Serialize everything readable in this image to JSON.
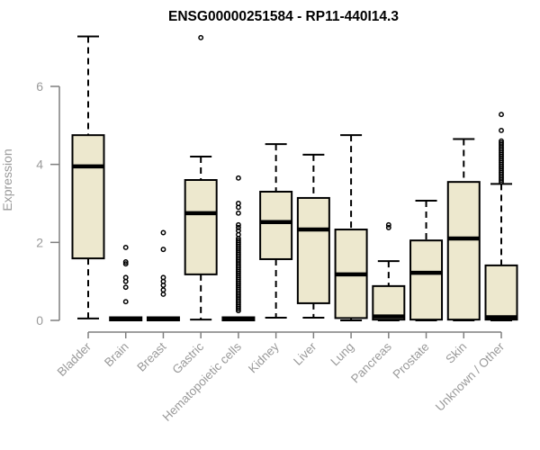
{
  "chart_data": {
    "type": "boxplot",
    "title": "ENSG00000251584 - RP11-440I14.3",
    "ylabel": "Expression",
    "xlabel": "",
    "ylim": [
      0,
      7.3
    ],
    "yticks": [
      0,
      2,
      4,
      6
    ],
    "grid": false,
    "legend": "none",
    "box_fill_color": "#ede8ce",
    "box_border_color": "#000000",
    "median_color": "#000000",
    "axis_line_color": "#7f7f7f",
    "axis_text_color": "#9a9a9a",
    "title_color": "#000000",
    "categories": [
      "Bladder",
      "Brain",
      "Breast",
      "Gastric",
      "Hematopoietic cells",
      "Kidney",
      "Liver",
      "Lung",
      "Pancreas",
      "Prostate",
      "Skin",
      "Unknown / Other"
    ],
    "boxes": [
      {
        "name": "Bladder",
        "whisker_low": 0.05,
        "q1": 1.59,
        "median": 3.95,
        "q3": 4.75,
        "whisker_high": 7.28,
        "outliers": []
      },
      {
        "name": "Brain",
        "whisker_low": 0,
        "q1": 0,
        "median": 0.03,
        "q3": 0.08,
        "whisker_high": 0.08,
        "outliers": [
          1.87,
          1.5,
          1.45,
          1.1,
          1.0,
          0.85,
          0.48
        ]
      },
      {
        "name": "Breast",
        "whisker_low": 0,
        "q1": 0,
        "median": 0.03,
        "q3": 0.08,
        "whisker_high": 0.08,
        "outliers": [
          2.25,
          1.82,
          1.1,
          1.0,
          0.9,
          0.78,
          0.67
        ]
      },
      {
        "name": "Gastric",
        "whisker_low": 0.02,
        "q1": 1.18,
        "median": 2.75,
        "q3": 3.6,
        "whisker_high": 4.2,
        "outliers": [
          7.25
        ]
      },
      {
        "name": "Hematopoietic cells",
        "whisker_low": 0,
        "q1": 0,
        "median": 0.03,
        "q3": 0.08,
        "whisker_high": 0.08,
        "outliers": [
          3.65,
          3.0,
          2.9,
          2.75,
          2.45,
          2.38,
          2.3,
          2.2,
          2.1,
          2.05,
          2.0,
          1.95,
          1.9,
          1.85,
          1.8,
          1.75,
          1.7,
          1.65,
          1.6,
          1.55,
          1.5,
          1.45,
          1.4,
          1.35,
          1.3,
          1.25,
          1.2,
          1.15,
          1.1,
          1.05,
          1.0,
          0.95,
          0.9,
          0.85,
          0.8,
          0.75,
          0.7,
          0.65,
          0.6,
          0.55,
          0.5,
          0.45,
          0.4,
          0.35,
          0.3,
          0.25
        ]
      },
      {
        "name": "Kidney",
        "whisker_low": 0.07,
        "q1": 1.57,
        "median": 2.52,
        "q3": 3.3,
        "whisker_high": 4.52,
        "outliers": []
      },
      {
        "name": "Liver",
        "whisker_low": 0.07,
        "q1": 0.44,
        "median": 2.33,
        "q3": 3.14,
        "whisker_high": 4.25,
        "outliers": []
      },
      {
        "name": "Lung",
        "whisker_low": 0,
        "q1": 0.06,
        "median": 1.18,
        "q3": 2.33,
        "whisker_high": 4.75,
        "outliers": []
      },
      {
        "name": "Pancreas",
        "whisker_low": 0,
        "q1": 0.02,
        "median": 0.1,
        "q3": 0.88,
        "whisker_high": 1.52,
        "outliers": [
          2.45,
          2.38
        ]
      },
      {
        "name": "Prostate",
        "whisker_low": 0,
        "q1": 0.02,
        "median": 1.22,
        "q3": 2.05,
        "whisker_high": 3.07,
        "outliers": []
      },
      {
        "name": "Skin",
        "whisker_low": 0,
        "q1": 0.02,
        "median": 2.1,
        "q3": 3.55,
        "whisker_high": 4.65,
        "outliers": []
      },
      {
        "name": "Unknown / Other",
        "whisker_low": 0,
        "q1": 0.02,
        "median": 0.08,
        "q3": 1.41,
        "whisker_high": 3.5,
        "outliers": [
          5.28,
          4.87,
          4.6,
          4.55,
          4.5,
          4.45,
          4.4,
          4.35,
          4.3,
          4.25,
          4.2,
          4.15,
          4.1,
          4.05,
          4.0,
          3.95,
          3.9,
          3.85,
          3.8,
          3.75,
          3.7,
          3.65,
          3.6,
          3.55
        ]
      }
    ]
  }
}
